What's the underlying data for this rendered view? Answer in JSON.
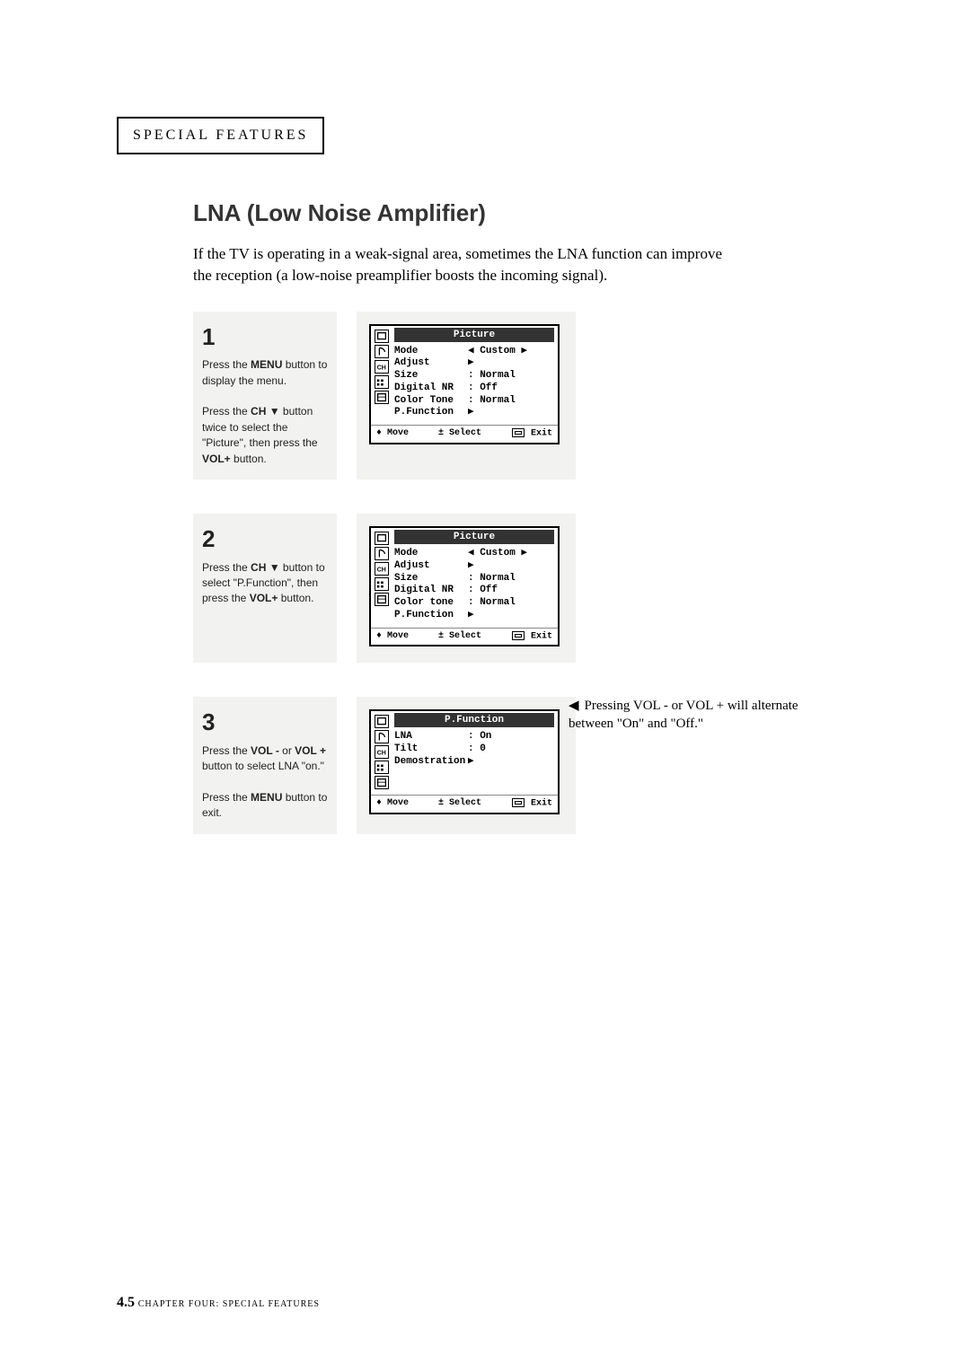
{
  "header": "SPECIAL FEATURES",
  "title": "LNA (Low Noise Amplifier)",
  "intro": "If the TV is operating in a weak-signal area, sometimes the LNA function can improve the reception (a low-noise preamplifier boosts the incoming signal).",
  "steps": [
    {
      "num": "1",
      "text_parts": [
        "Press the ",
        "MENU",
        " button to display the menu.",
        "Press the ",
        "CH ▼",
        " button twice to select the \"Picture\", then press the ",
        "VOL+",
        " button."
      ],
      "osd": {
        "title": "Picture",
        "rows": [
          {
            "k": "Mode",
            "v": "◀ Custom ▶"
          },
          {
            "k": "Adjust",
            "v": "▶"
          },
          {
            "k": "Size",
            "v": ": Normal"
          },
          {
            "k": "Digital NR",
            "v": ": Off"
          },
          {
            "k": "Color Tone",
            "v": ": Normal"
          },
          {
            "k": "P.Function",
            "v": "▶"
          }
        ],
        "foot": [
          "♦ Move",
          "± Select",
          "▭ Exit"
        ]
      }
    },
    {
      "num": "2",
      "text_parts": [
        "Press the ",
        "CH ▼",
        " button to select \"P.Function\", then press the ",
        "VOL+",
        " button."
      ],
      "osd": {
        "title": "Picture",
        "rows": [
          {
            "k": "Mode",
            "v": "◀ Custom ▶"
          },
          {
            "k": "Adjust",
            "v": "▶"
          },
          {
            "k": "Size",
            "v": ": Normal"
          },
          {
            "k": "Digital NR",
            "v": ": Off"
          },
          {
            "k": "Color tone",
            "v": ": Normal"
          },
          {
            "k": "P.Function",
            "v": "▶"
          }
        ],
        "foot": [
          "♦ Move",
          "± Select",
          "▭ Exit"
        ]
      }
    },
    {
      "num": "3",
      "text_parts": [
        "Press the ",
        "VOL -",
        " or ",
        "VOL +",
        " button to select LNA \"on.\"",
        "Press the ",
        "MENU",
        " button to exit."
      ],
      "osd": {
        "title": "P.Function",
        "rows": [
          {
            "k": "LNA",
            "v": ": On"
          },
          {
            "k": "Tilt",
            "v": ": 0"
          },
          {
            "k": "Demostration",
            "v": "▶"
          }
        ],
        "foot": [
          "♦ Move",
          "± Select",
          "▭ Exit"
        ]
      },
      "side_note": "Pressing VOL -  or  VOL + will alternate between \"On\" and \"Off.\""
    }
  ],
  "footer": {
    "num": "4.5",
    "label": "CHAPTER FOUR: SPECIAL FEATURES"
  },
  "colors": {
    "page_bg": "#ffffff",
    "panel_bg": "#f2f2f0",
    "osd_head_bg": "#333333",
    "text": "#000000"
  }
}
